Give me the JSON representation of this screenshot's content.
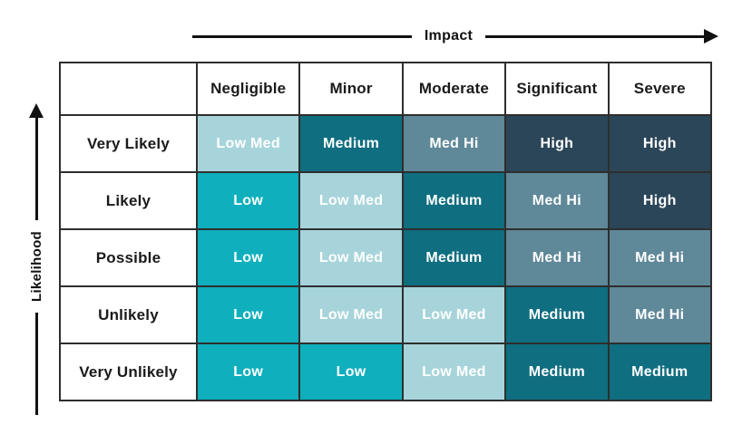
{
  "colors": {
    "low": "#0fafbd",
    "low_med": "#a7d4db",
    "medium": "#0f6e80",
    "med_hi": "#5f8899",
    "high": "#2b4658",
    "grid_border": "#2e2e2e",
    "axis": "#111111",
    "header_text": "#1a1a1a",
    "cell_text": "#ffffff"
  },
  "chart_data": {
    "type": "heatmap",
    "title": "",
    "xlabel": "Impact",
    "ylabel": "Likelihood",
    "legend": "none",
    "grid": true,
    "columns": [
      "Negligible",
      "Minor",
      "Moderate",
      "Significant",
      "Severe"
    ],
    "rows": [
      "Very Likely",
      "Likely",
      "Possible",
      "Unlikely",
      "Very Unlikely"
    ],
    "cells": [
      [
        "Low Med",
        "Medium",
        "Med Hi",
        "High",
        "High"
      ],
      [
        "Low",
        "Low Med",
        "Medium",
        "Med Hi",
        "High"
      ],
      [
        "Low",
        "Low Med",
        "Medium",
        "Med Hi",
        "Med Hi"
      ],
      [
        "Low",
        "Low Med",
        "Low Med",
        "Medium",
        "Med Hi"
      ],
      [
        "Low",
        "Low",
        "Low Med",
        "Medium",
        "Medium"
      ]
    ],
    "levels": [
      "Low",
      "Low Med",
      "Medium",
      "Med Hi",
      "High"
    ]
  }
}
